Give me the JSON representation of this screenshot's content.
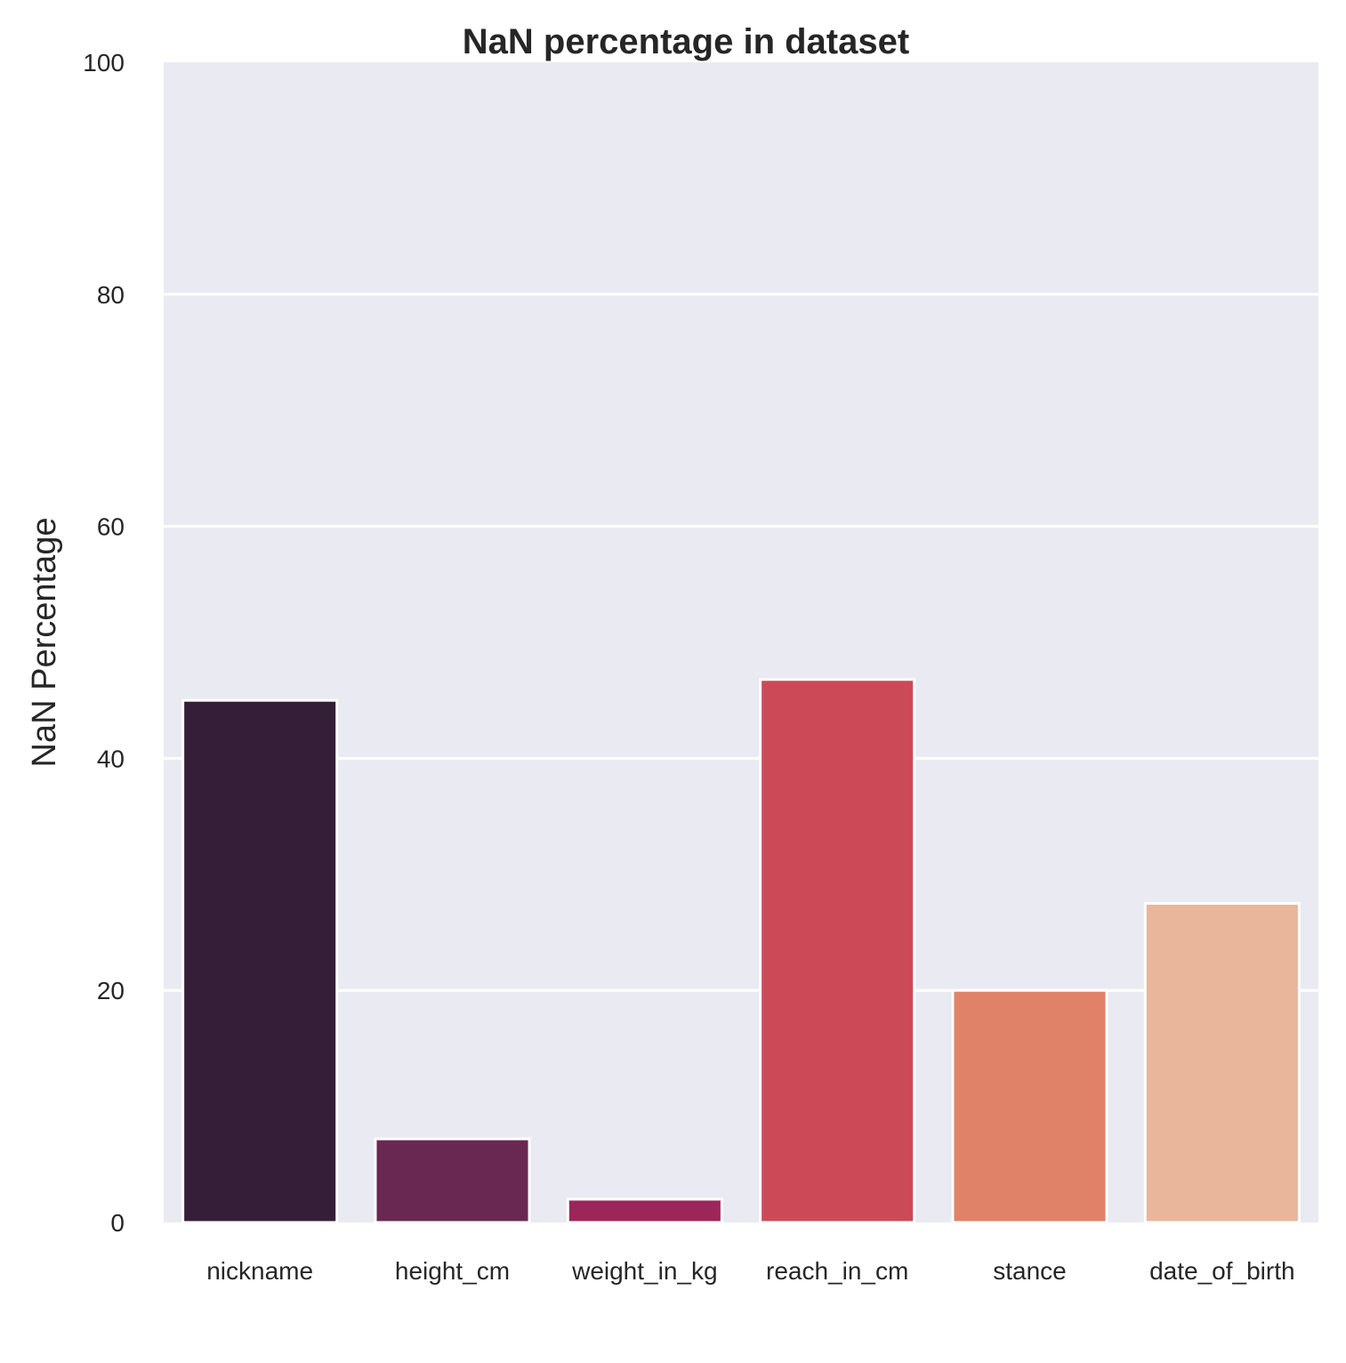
{
  "chart_data": {
    "type": "bar",
    "title": "NaN percentage in dataset",
    "xlabel": "",
    "ylabel": "NaN Percentage",
    "ylim": [
      0,
      100
    ],
    "yticks": [
      "0",
      "20",
      "40",
      "60",
      "80",
      "100"
    ],
    "categories": [
      "nickname",
      "height_cm",
      "weight_in_kg",
      "reach_in_cm",
      "stance",
      "date_of_birth"
    ],
    "values": [
      45.0,
      7.2,
      2.0,
      46.8,
      20.0,
      27.5
    ],
    "colors": [
      "#351e37",
      "#682852",
      "#9c2659",
      "#cc4a58",
      "#e08268",
      "#e9b69c"
    ],
    "background": "#eaeaf2",
    "grid": true
  }
}
